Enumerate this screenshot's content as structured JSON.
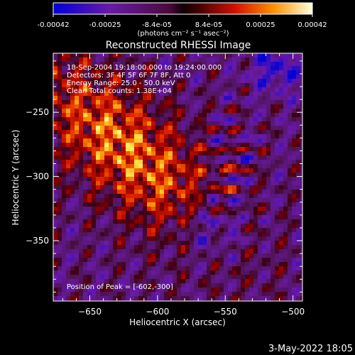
{
  "colorbar": {
    "ticks": [
      "-0.00042",
      "-0.00025",
      "-8.4e-05",
      "8.4e-05",
      "0.00025",
      "0.00042"
    ],
    "unit_label": "(photons cm⁻² s⁻¹ asec⁻²)"
  },
  "chart_data": {
    "type": "heatmap",
    "title": "Reconstructed RHESSI Image",
    "xlabel": "Heliocentric X (arcsec)",
    "ylabel": "Heliocentric Y (arcsec)",
    "xlim": [
      -677,
      -493
    ],
    "ylim": [
      -397,
      -204
    ],
    "xticks": [
      -650,
      -600,
      -550,
      -500
    ],
    "yticks": [
      -250,
      -300,
      -350
    ],
    "color_range": [
      -0.00042,
      0.00042
    ],
    "colormap": "blue-purple-red-yellow-white",
    "annotations": [
      "18-Sep-2004 19:18:00.000 to 19:24:00.000",
      "Detectors: 3F 4F 5F 6F 7F 8F, Att 0",
      "Energy Range: 25.0 - 50.0 keV",
      "Clean    Total counts: 1.38E+04"
    ],
    "peak_label": "Position of Peak = [-602,-300]",
    "peak": [
      -602,
      -300
    ]
  },
  "timestamp": "3-May-2022 18:05"
}
